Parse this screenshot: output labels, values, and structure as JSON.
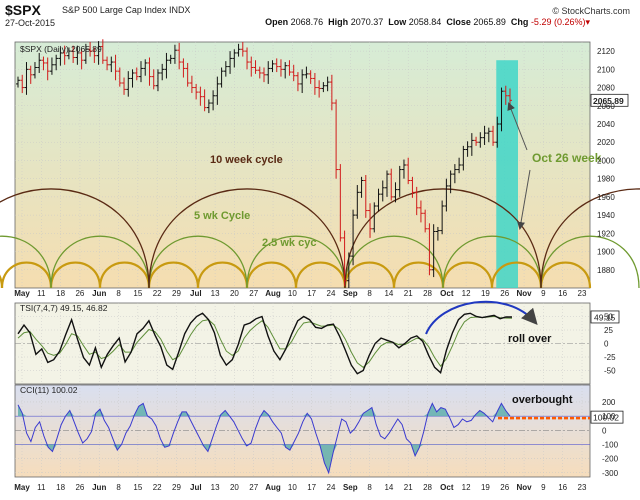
{
  "header": {
    "symbol": "$SPX",
    "name": "S&P 500 Large Cap Index",
    "exchange": "INDX",
    "date": "27-Oct-2015",
    "brand": "© StockCharts.com",
    "open_label": "Open",
    "open": "2068.76",
    "high_label": "High",
    "high": "2070.37",
    "low_label": "Low",
    "low": "2058.84",
    "close_label": "Close",
    "close": "2065.89",
    "chg_label": "Chg",
    "chg": "-5.29 (0.26%)"
  },
  "colors": {
    "price_bg_top": "#d6ecd6",
    "price_bg_bottom": "#f5ddb0",
    "tsi_bg": "#f3f3e6",
    "cci_bg_top": "#d9dff0",
    "cci_bg_bottom": "#f6ddbc",
    "up_bar": "#111111",
    "down_bar": "#d11a1a",
    "cycle_10wk": "#5a2a14",
    "cycle_5wk": "#6f9a30",
    "cycle_2_5wk": "#c89a10",
    "highlight": "#3fd6c8",
    "annotation_blue": "#2038c0",
    "overbought_line": "#ff5a00",
    "cci_line": "#3a3ad0"
  },
  "chart_data": [
    {
      "type": "bar",
      "label": "$SPX (Daily) 2065.89",
      "last_value": "2065.89",
      "ylim": [
        1860,
        2130
      ],
      "y_ticks": [
        1880,
        1900,
        1920,
        1940,
        1960,
        1980,
        2000,
        2020,
        2040,
        2060,
        2080,
        2100,
        2120
      ],
      "x_ticks": [
        "May",
        "11",
        "18",
        "26",
        "Jun",
        "8",
        "15",
        "22",
        "29",
        "Jul",
        "13",
        "20",
        "27",
        "Aug",
        "10",
        "17",
        "24",
        "Sep",
        "8",
        "14",
        "21",
        "28",
        "Oct",
        "12",
        "19",
        "26",
        "Nov",
        "9",
        "16",
        "23"
      ],
      "closes": [
        2088,
        2080,
        2100,
        2094,
        2102,
        2110,
        2107,
        2098,
        2105,
        2112,
        2118,
        2115,
        2120,
        2113,
        2118,
        2110,
        2122,
        2120,
        2115,
        2125,
        2110,
        2105,
        2108,
        2098,
        2085,
        2078,
        2090,
        2096,
        2092,
        2101,
        2107,
        2092,
        2082,
        2096,
        2100,
        2110,
        2112,
        2121,
        2108,
        2101,
        2085,
        2080,
        2075,
        2070,
        2058,
        2063,
        2071,
        2084,
        2098,
        2103,
        2112,
        2118,
        2122,
        2120,
        2108,
        2102,
        2099,
        2096,
        2094,
        2101,
        2106,
        2103,
        2100,
        2104,
        2097,
        2093,
        2084,
        2094,
        2095,
        2090,
        2080,
        2079,
        2082,
        2086,
        2063,
        1990,
        1915,
        1868,
        1895,
        1940,
        1965,
        1978,
        1945,
        1925,
        1950,
        1963,
        1970,
        1985,
        1960,
        1968,
        1990,
        1995,
        1978,
        1965,
        1948,
        1942,
        1925,
        1880,
        1922,
        1923,
        1950,
        1972,
        1985,
        1990,
        1995,
        2012,
        2015,
        2022,
        2020,
        2025,
        2030,
        2032,
        2020,
        2040,
        2076,
        2071,
        2066
      ],
      "annotations": [
        "10 week cycle",
        "5 wk Cycle",
        "2.5 wk cyc",
        "Oct 26 week"
      ]
    },
    {
      "type": "line",
      "label": "TSI(7,4,7) 49.15, 46.82",
      "series": [
        {
          "name": "TSI"
        },
        {
          "name": "Signal"
        }
      ],
      "last_value": "49.15",
      "ylim": [
        -75,
        75
      ],
      "y_ticks": [
        50,
        25,
        0,
        -25,
        -50
      ],
      "tsi": [
        18,
        34,
        20,
        -20,
        -10,
        -35,
        -30,
        -14,
        16,
        44,
        8,
        -26,
        -40,
        -8,
        -44,
        -20,
        -4,
        10,
        -34,
        -16,
        18,
        28,
        42,
        16,
        -6,
        -40,
        -48,
        -16,
        18,
        38,
        50,
        56,
        44,
        20,
        -22,
        -40,
        -30,
        -2,
        34,
        38,
        46,
        50,
        14,
        -14,
        -30,
        -10,
        18,
        42,
        50,
        44,
        30,
        28,
        34,
        36,
        14,
        -12,
        -40,
        -56,
        -50,
        -22,
        0,
        10,
        6,
        2,
        -8,
        0,
        10,
        14,
        4,
        -22,
        -44,
        -54,
        -12,
        20,
        44,
        54,
        56,
        50,
        48,
        50,
        52,
        46,
        49,
        49
      ],
      "signal": [
        10,
        20,
        22,
        8,
        -4,
        -18,
        -22,
        -18,
        -2,
        18,
        14,
        -4,
        -20,
        -16,
        -28,
        -24,
        -14,
        -2,
        -16,
        -16,
        2,
        14,
        26,
        22,
        8,
        -14,
        -30,
        -24,
        -4,
        16,
        32,
        42,
        44,
        34,
        8,
        -14,
        -22,
        -14,
        10,
        24,
        34,
        42,
        30,
        10,
        -10,
        -10,
        4,
        24,
        38,
        40,
        36,
        32,
        33,
        34,
        26,
        8,
        -16,
        -36,
        -44,
        -34,
        -18,
        -4,
        2,
        2,
        -2,
        -2,
        4,
        10,
        8,
        -6,
        -26,
        -42,
        -28,
        -4,
        22,
        40,
        48,
        49,
        48,
        49,
        50,
        48,
        47,
        46.82
      ],
      "annotations": [
        "roll over"
      ]
    },
    {
      "type": "area",
      "label": "CCI(11) 100.02",
      "last_value": "100.02",
      "ylim": [
        -330,
        320
      ],
      "y_ticks": [
        200,
        100,
        0,
        -100,
        -200,
        -300
      ],
      "values": [
        180,
        120,
        -20,
        -80,
        20,
        60,
        -40,
        -120,
        -150,
        -60,
        40,
        100,
        140,
        60,
        -20,
        -90,
        -60,
        -10,
        120,
        150,
        70,
        20,
        -60,
        -140,
        -100,
        -20,
        30,
        110,
        170,
        190,
        100,
        80,
        30,
        -60,
        -120,
        -110,
        -20,
        60,
        130,
        130,
        70,
        10,
        -50,
        -110,
        -150,
        -60,
        30,
        110,
        140,
        100,
        60,
        0,
        -60,
        -110,
        -90,
        10,
        90,
        140,
        110,
        60,
        20,
        -20,
        -120,
        -140,
        -80,
        -20,
        60,
        120,
        80,
        -20,
        -110,
        -230,
        -300,
        -160,
        -40,
        80,
        60,
        -20,
        10,
        60,
        120,
        140,
        160,
        40,
        -40,
        -60,
        -20,
        30,
        80,
        40,
        -60,
        -90,
        -180,
        -120,
        -10,
        120,
        190,
        130,
        160,
        150,
        90,
        20,
        40,
        80,
        60,
        70,
        110,
        140,
        120,
        90,
        60,
        130,
        190,
        140,
        100
      ],
      "annotations": [
        "overbought"
      ]
    }
  ]
}
